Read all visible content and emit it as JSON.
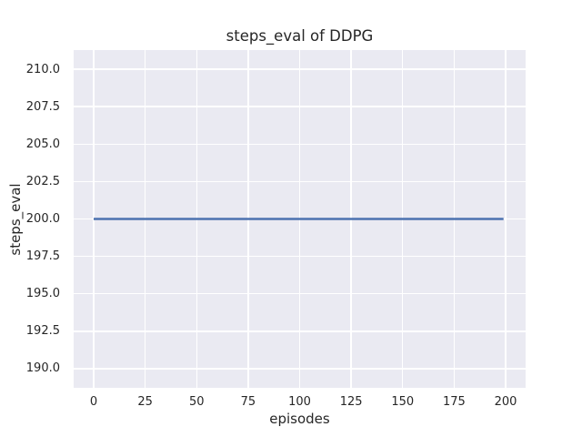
{
  "chart_data": {
    "type": "line",
    "title": "steps_eval of DDPG",
    "xlabel": "episodes",
    "ylabel": "steps_eval",
    "x_ticks": [
      0,
      25,
      50,
      75,
      100,
      125,
      150,
      175,
      200
    ],
    "x_tick_labels": [
      "0",
      "25",
      "50",
      "75",
      "100",
      "125",
      "150",
      "175",
      "200"
    ],
    "y_ticks": [
      190.0,
      192.5,
      195.0,
      197.5,
      200.0,
      202.5,
      205.0,
      207.5,
      210.0
    ],
    "y_tick_labels": [
      "190.0",
      "192.5",
      "195.0",
      "197.5",
      "200.0",
      "202.5",
      "205.0",
      "207.5",
      "210.0"
    ],
    "xlim": [
      -9.72,
      209.72
    ],
    "ylim": [
      188.72,
      211.28
    ],
    "grid": true,
    "legend": false,
    "series": [
      {
        "name": "steps_eval",
        "color": "#4c72b0",
        "x": [
          0,
          199
        ],
        "y": [
          200,
          200
        ],
        "description": "constant horizontal line at steps_eval = 200 from episode 0 to episode 199"
      }
    ]
  },
  "colors": {
    "figure_background": "#ffffff",
    "plot_background": "#eaeaf2",
    "grid": "#ffffff",
    "line": "#4c72b0",
    "text": "#262626"
  }
}
